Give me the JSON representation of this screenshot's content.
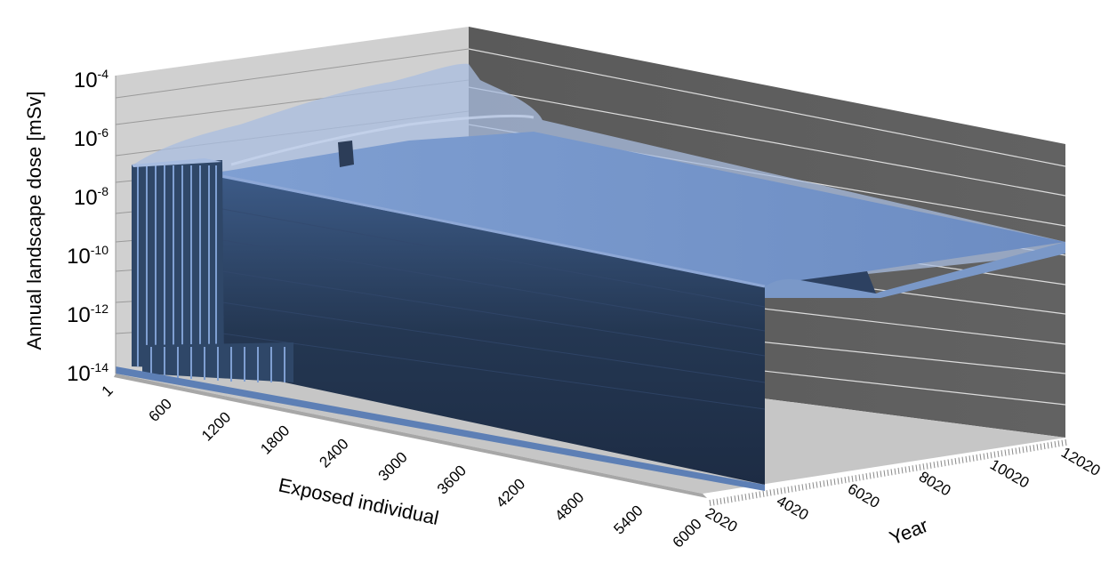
{
  "chart_data": {
    "type": "area",
    "view": "3d-surface",
    "ylabel": "Annual landscape dose [mSv]",
    "xlabel": "Exposed individual",
    "zlabel": "Year",
    "y_scale": "log",
    "y_ticks": [
      {
        "base": "10",
        "exp": "-4"
      },
      {
        "base": "10",
        "exp": "-6"
      },
      {
        "base": "10",
        "exp": "-8"
      },
      {
        "base": "10",
        "exp": "-10"
      },
      {
        "base": "10",
        "exp": "-12"
      },
      {
        "base": "10",
        "exp": "-14"
      }
    ],
    "ylim": [
      "1e-14",
      "1e-4"
    ],
    "x_ticks": [
      "1",
      "600",
      "1200",
      "1800",
      "2400",
      "3000",
      "3600",
      "4200",
      "4800",
      "5400",
      "6000"
    ],
    "xlim": [
      1,
      6000
    ],
    "z_ticks": [
      "2020",
      "4020",
      "6020",
      "8020",
      "10020",
      "12020"
    ],
    "zlim": [
      2020,
      12020
    ],
    "grid": true,
    "colors": {
      "surface_top": "#6f8ec4",
      "surface_front": "#2a3f5f",
      "back_wall": "#5a5a5a",
      "side_wall": "#cccccc",
      "floor": "#c4c4c4"
    }
  }
}
